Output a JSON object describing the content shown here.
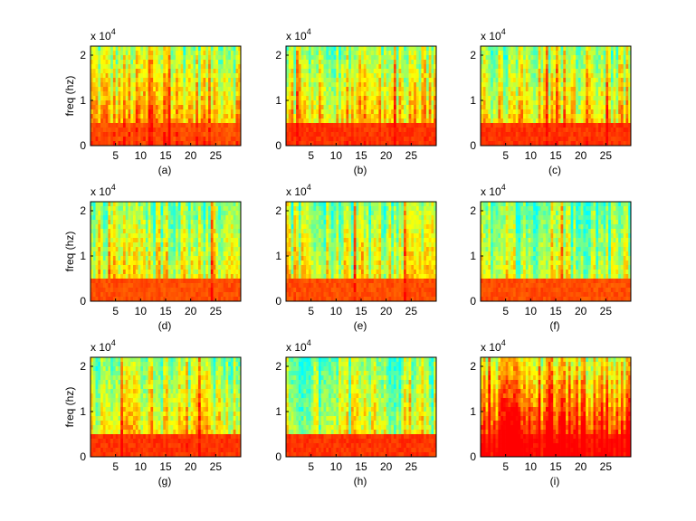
{
  "figure": {
    "ylabel": "freq (hz)",
    "multiplier_base": "x 10",
    "multiplier_exp": "4"
  },
  "chart_data": [
    {
      "type": "heatmap",
      "caption": "(a)",
      "xticks": [
        5,
        10,
        15,
        20,
        25
      ],
      "yticks": [
        0,
        1,
        2
      ],
      "xlim": [
        0,
        30
      ],
      "ylim": [
        0,
        2.2
      ],
      "y_multiplier": "x 10^4",
      "ylabel": "freq (hz)",
      "intensity": 0.62,
      "low_band": 0.85,
      "colormap": [
        "#00ffff",
        "#ffff00",
        "#ff0000"
      ]
    },
    {
      "type": "heatmap",
      "caption": "(b)",
      "xticks": [
        5,
        10,
        15,
        20,
        25
      ],
      "yticks": [
        0,
        1,
        2
      ],
      "xlim": [
        0,
        30
      ],
      "ylim": [
        0,
        2.2
      ],
      "y_multiplier": "x 10^4",
      "ylabel": "",
      "intensity": 0.55,
      "low_band": 0.9,
      "colormap": [
        "#00ffff",
        "#ffff00",
        "#ff0000"
      ]
    },
    {
      "type": "heatmap",
      "caption": "(c)",
      "xticks": [
        5,
        10,
        15,
        20,
        25
      ],
      "yticks": [
        0,
        1,
        2
      ],
      "xlim": [
        0,
        30
      ],
      "ylim": [
        0,
        2.2
      ],
      "y_multiplier": "x 10^4",
      "ylabel": "",
      "intensity": 0.5,
      "low_band": 0.9,
      "colormap": [
        "#00ffff",
        "#ffff00",
        "#ff0000"
      ]
    },
    {
      "type": "heatmap",
      "caption": "(d)",
      "xticks": [
        5,
        10,
        15,
        20,
        25
      ],
      "yticks": [
        0,
        1,
        2
      ],
      "xlim": [
        0,
        30
      ],
      "ylim": [
        0,
        2.2
      ],
      "y_multiplier": "x 10^4",
      "ylabel": "freq (hz)",
      "intensity": 0.45,
      "low_band": 0.85,
      "colormap": [
        "#00ffff",
        "#ffff00",
        "#ff0000"
      ]
    },
    {
      "type": "heatmap",
      "caption": "(e)",
      "xticks": [
        5,
        10,
        15,
        20,
        25
      ],
      "yticks": [
        0,
        1,
        2
      ],
      "xlim": [
        0,
        30
      ],
      "ylim": [
        0,
        2.2
      ],
      "y_multiplier": "x 10^4",
      "ylabel": "",
      "intensity": 0.42,
      "low_band": 0.85,
      "colormap": [
        "#00ffff",
        "#ffff00",
        "#ff0000"
      ]
    },
    {
      "type": "heatmap",
      "caption": "(f)",
      "xticks": [
        5,
        10,
        15,
        20,
        25
      ],
      "yticks": [
        0,
        1,
        2
      ],
      "xlim": [
        0,
        30
      ],
      "ylim": [
        0,
        2.2
      ],
      "y_multiplier": "x 10^4",
      "ylabel": "",
      "intensity": 0.36,
      "low_band": 0.85,
      "colormap": [
        "#00ffff",
        "#ffff00",
        "#ff0000"
      ]
    },
    {
      "type": "heatmap",
      "caption": "(g)",
      "xticks": [
        5,
        10,
        15,
        20,
        25
      ],
      "yticks": [
        0,
        1,
        2
      ],
      "xlim": [
        0,
        30
      ],
      "ylim": [
        0,
        2.2
      ],
      "y_multiplier": "x 10^4",
      "ylabel": "freq (hz)",
      "intensity": 0.5,
      "low_band": 0.9,
      "colormap": [
        "#00ffff",
        "#ffff00",
        "#ff0000"
      ]
    },
    {
      "type": "heatmap",
      "caption": "(h)",
      "xticks": [
        5,
        10,
        15,
        20,
        25
      ],
      "yticks": [
        0,
        1,
        2
      ],
      "xlim": [
        0,
        30
      ],
      "ylim": [
        0,
        2.2
      ],
      "y_multiplier": "x 10^4",
      "ylabel": "",
      "intensity": 0.38,
      "low_band": 0.9,
      "colormap": [
        "#00ffff",
        "#ffff00",
        "#ff0000"
      ]
    },
    {
      "type": "heatmap",
      "caption": "(i)",
      "xticks": [
        5,
        10,
        15,
        20,
        25
      ],
      "yticks": [
        0,
        1,
        2
      ],
      "xlim": [
        0,
        30
      ],
      "ylim": [
        0,
        2.2
      ],
      "y_multiplier": "x 10^4",
      "ylabel": "",
      "intensity": 0.88,
      "low_band": 0.95,
      "colormap": [
        "#00ffff",
        "#ffff00",
        "#ff0000"
      ]
    }
  ]
}
